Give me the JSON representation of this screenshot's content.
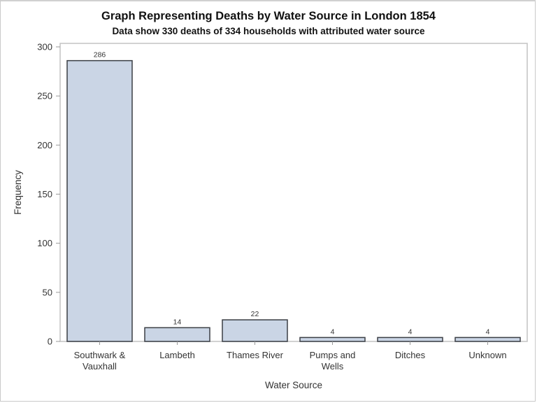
{
  "chart_data": {
    "type": "bar",
    "title": "Graph Representing Deaths by Water Source in London 1854",
    "subtitle": "Data show 330 deaths of 334 households with attributed water source",
    "xlabel": "Water Source",
    "ylabel": "Frequency",
    "categories": [
      "Southwark & Vauxhall",
      "Lambeth",
      "Thames River",
      "Pumps and Wells",
      "Ditches",
      "Unknown"
    ],
    "category_lines": [
      [
        "Southwark &",
        "Vauxhall"
      ],
      [
        "Lambeth"
      ],
      [
        "Thames River"
      ],
      [
        "Pumps and",
        "Wells"
      ],
      [
        "Ditches"
      ],
      [
        "Unknown"
      ]
    ],
    "values": [
      286,
      14,
      22,
      4,
      4,
      4
    ],
    "ylim": [
      0,
      300
    ],
    "yticks": [
      0,
      50,
      100,
      150,
      200,
      250,
      300
    ],
    "grid": false,
    "legend": null,
    "data_labels": true,
    "colors": {
      "bar_fill": "#cad5e5",
      "bar_edge": "#3b3f45",
      "frame": "#c3c3c3"
    }
  }
}
